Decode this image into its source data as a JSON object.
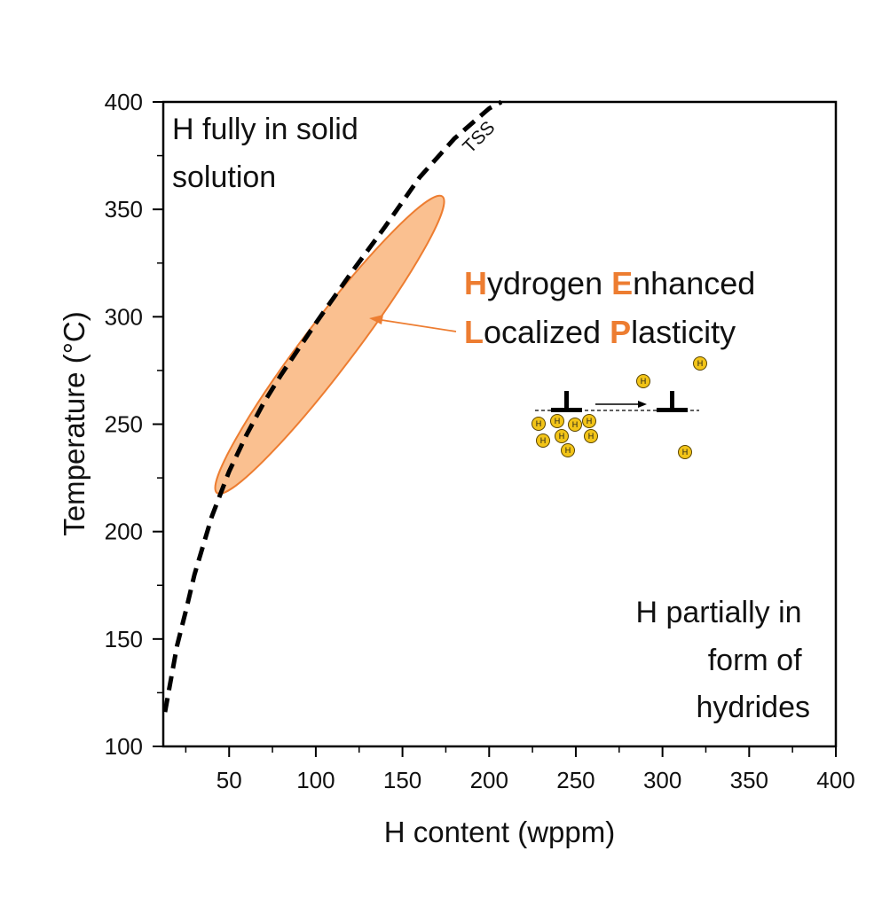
{
  "chart_data": {
    "type": "line",
    "xlabel": "H content (wppm)",
    "ylabel": "Temperature (°C)",
    "xlim": [
      12,
      400
    ],
    "ylim": [
      100,
      400
    ],
    "xticks": [
      50,
      100,
      150,
      200,
      250,
      300,
      350,
      400
    ],
    "yticks": [
      100,
      150,
      200,
      250,
      300,
      350,
      400
    ],
    "grid": false,
    "series": [
      {
        "name": "TSS",
        "style": "dashed",
        "color": "#000000",
        "x": [
          13,
          15,
          20,
          25,
          30,
          40,
          50,
          60,
          70,
          80,
          100,
          120,
          140,
          160,
          180,
          200,
          207
        ],
        "y": [
          116,
          125,
          147,
          163,
          180,
          207,
          228,
          245,
          260,
          273,
          297,
          320,
          342,
          365,
          383,
          397,
          400
        ]
      }
    ],
    "region": {
      "shape": "ellipse",
      "fill": "#FAC090",
      "stroke": "#ED7D31",
      "center": [
        108,
        287
      ],
      "points": [
        [
          20,
          230
        ],
        [
          55,
          205
        ],
        [
          150,
          368
        ],
        [
          160,
          355
        ]
      ]
    },
    "annotations": {
      "top_left": [
        "H fully in solid",
        "solution"
      ],
      "bottom_right": [
        "H partially in",
        "form of",
        "hydrides"
      ],
      "curve_label": "TSS",
      "hel_line1": [
        {
          "text": "H",
          "accent": true
        },
        {
          "text": "ydrogen ",
          "accent": false
        },
        {
          "text": "E",
          "accent": true
        },
        {
          "text": "nhanced",
          "accent": false
        }
      ],
      "hel_line2": [
        {
          "text": "L",
          "accent": true
        },
        {
          "text": "ocalized ",
          "accent": false
        },
        {
          "text": "P",
          "accent": true
        },
        {
          "text": "lasticity",
          "accent": false
        }
      ],
      "hydrogen_symbol": "H"
    },
    "colors": {
      "accent": "#ED7D31",
      "region_fill": "#FAC090",
      "hydrogen_fill": "#F2C418",
      "axis": "#000000"
    }
  }
}
